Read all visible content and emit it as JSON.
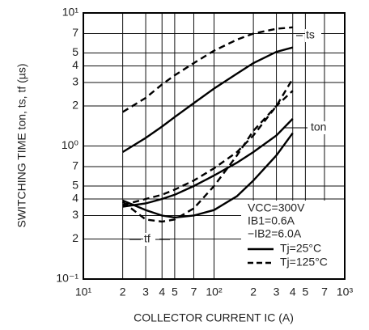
{
  "chart_data": {
    "type": "line",
    "y_label": "SWITCHING TIME   ton, ts, tf (µs)",
    "x_label": "COLLECTOR CURRENT   IC (A)",
    "log_x": true,
    "log_y": true,
    "grid": true,
    "xlim": [
      10,
      1000
    ],
    "ylim": [
      0.1,
      10
    ],
    "xticks": [
      {
        "value": 10,
        "label": "10¹"
      },
      {
        "value": 20,
        "label": "2"
      },
      {
        "value": 30,
        "label": "3"
      },
      {
        "value": 40,
        "label": "4"
      },
      {
        "value": 50,
        "label": "5"
      },
      {
        "value": 70,
        "label": "7"
      },
      {
        "value": 100,
        "label": "10²"
      },
      {
        "value": 200,
        "label": "2"
      },
      {
        "value": 300,
        "label": "3"
      },
      {
        "value": 400,
        "label": "4"
      },
      {
        "value": 500,
        "label": "5"
      },
      {
        "value": 700,
        "label": "7"
      },
      {
        "value": 1000,
        "label": "10³"
      }
    ],
    "yticks": [
      {
        "value": 0.1,
        "label": "10⁻¹"
      },
      {
        "value": 0.2,
        "label": "2"
      },
      {
        "value": 0.3,
        "label": "3"
      },
      {
        "value": 0.4,
        "label": "4"
      },
      {
        "value": 0.5,
        "label": "5"
      },
      {
        "value": 0.7,
        "label": "7"
      },
      {
        "value": 1,
        "label": "10⁰"
      },
      2,
      3,
      4,
      5,
      7,
      {
        "value": 10,
        "label": "10¹"
      }
    ],
    "x": [
      20,
      30,
      40,
      50,
      70,
      100,
      150,
      200,
      300,
      400
    ],
    "legend": [
      {
        "name": "Tj=25°C",
        "color": "#000000",
        "dashed": false
      },
      {
        "name": "Tj=125°C",
        "color": "#000000",
        "dashed": true
      }
    ],
    "conditions": [
      "VCC=300V",
      "IB1=0.6A",
      "−IB2=6.0A"
    ],
    "curves": [
      {
        "label": "ts",
        "series": [
          {
            "style": 0,
            "values": [
              0.9,
              1.15,
              1.4,
              1.65,
              2.1,
              2.7,
              3.5,
              4.2,
              5.1,
              5.5
            ]
          },
          {
            "style": 1,
            "values": [
              1.8,
              2.3,
              2.9,
              3.4,
              4.2,
              5.2,
              6.3,
              7.0,
              7.6,
              7.8
            ]
          }
        ]
      },
      {
        "label": "ton",
        "series": [
          {
            "style": 0,
            "values": [
              0.35,
              0.37,
              0.4,
              0.43,
              0.5,
              0.6,
              0.75,
              0.9,
              1.2,
              1.6
            ]
          },
          {
            "style": 1,
            "values": [
              0.36,
              0.4,
              0.43,
              0.47,
              0.55,
              0.68,
              0.9,
              1.2,
              2.0,
              3.2
            ]
          }
        ]
      },
      {
        "label": "tf",
        "series": [
          {
            "style": 0,
            "values": [
              0.39,
              0.33,
              0.3,
              0.29,
              0.3,
              0.33,
              0.42,
              0.55,
              0.85,
              1.25
            ]
          },
          {
            "style": 1,
            "values": [
              0.38,
              0.28,
              0.27,
              0.28,
              0.34,
              0.5,
              0.85,
              1.3,
              2.0,
              2.6
            ]
          }
        ]
      }
    ]
  }
}
